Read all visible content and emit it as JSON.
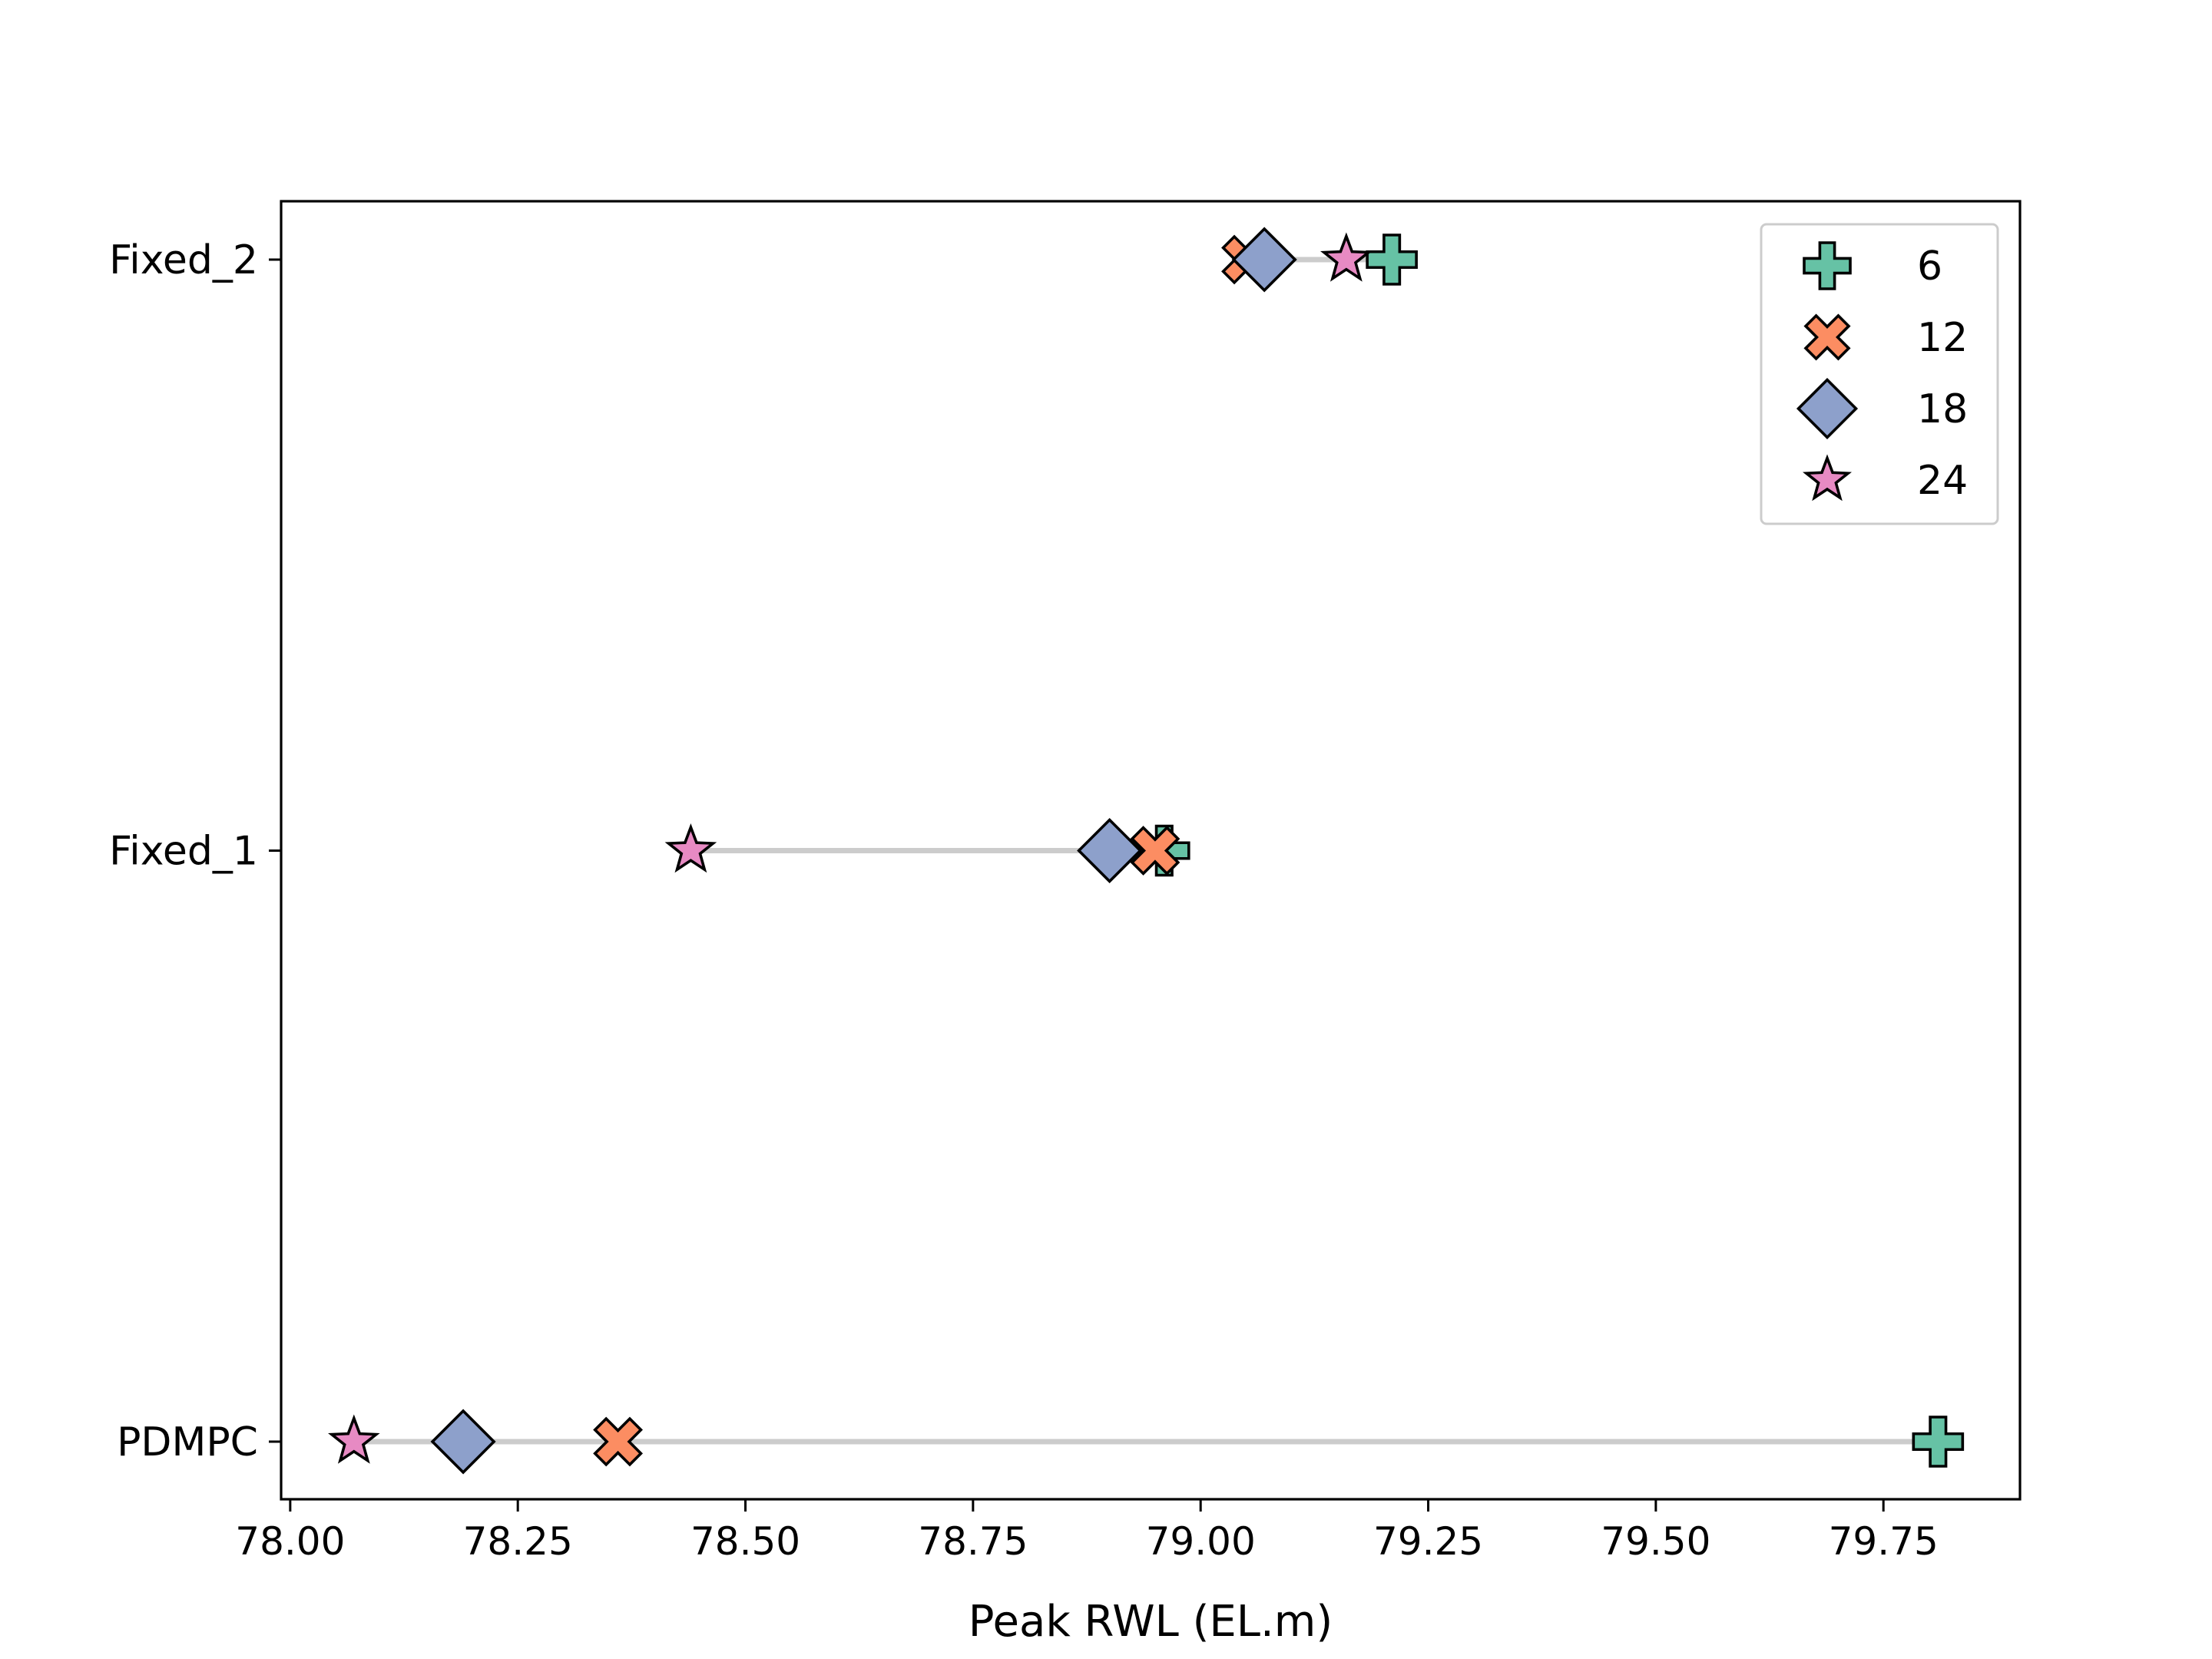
{
  "chart_data": {
    "type": "scatter",
    "title": "",
    "xlabel": "Peak RWL (EL.m)",
    "ylabel": "",
    "xlim": [
      77.99,
      79.9
    ],
    "x_ticks": [
      "78.00",
      "78.25",
      "78.50",
      "78.75",
      "79.00",
      "79.25",
      "79.50",
      "79.75"
    ],
    "x_tick_values": [
      78.0,
      78.25,
      78.5,
      78.75,
      79.0,
      79.25,
      79.5,
      79.75
    ],
    "categories": [
      "PDMPC",
      "Fixed_1",
      "Fixed_2"
    ],
    "grid": false,
    "legend_position": "top-right",
    "connector_color": "#cccccc",
    "series": [
      {
        "name": "6",
        "marker": "plus-icon",
        "color": "#66c2a5",
        "values": [
          79.81,
          78.96,
          79.21
        ]
      },
      {
        "name": "12",
        "marker": "x-icon",
        "color": "#fc8d62",
        "values": [
          78.36,
          78.95,
          79.05
        ]
      },
      {
        "name": "18",
        "marker": "diamond-icon",
        "color": "#8da0cb",
        "values": [
          78.19,
          78.9,
          79.07
        ]
      },
      {
        "name": "24",
        "marker": "star-icon",
        "color": "#e78ac3",
        "values": [
          78.07,
          78.44,
          79.16
        ]
      }
    ]
  }
}
